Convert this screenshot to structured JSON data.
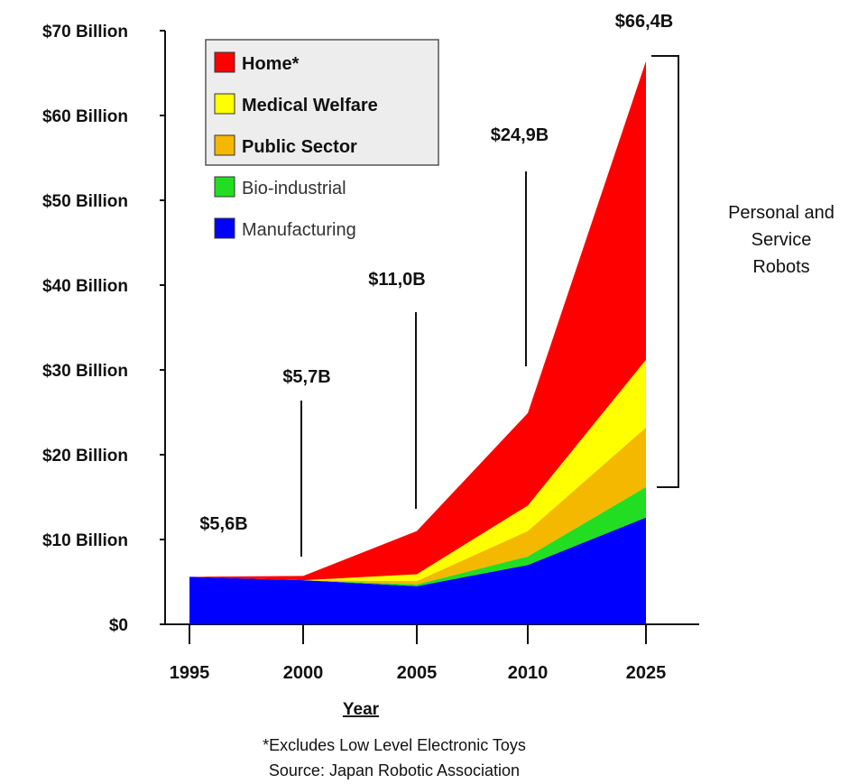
{
  "chart_data": {
    "type": "area",
    "stacked": true,
    "x": [
      "1995",
      "2000",
      "2005",
      "2010",
      "2025"
    ],
    "xlabel": "Year",
    "ylabel": "",
    "ylim": [
      0,
      70
    ],
    "y_ticks": [
      "$0",
      "$10 Billion",
      "$20 Billion",
      "$30 Billion",
      "$40 Billion",
      "$50 Billion",
      "$60 Billion",
      "$70 Billion"
    ],
    "series": [
      {
        "name": "Manufacturing",
        "color": "#0000ff",
        "values": [
          5.6,
          5.2,
          4.5,
          7.0,
          12.6
        ]
      },
      {
        "name": "Bio-industrial",
        "color": "#22dd22",
        "values": [
          0,
          0,
          0.2,
          1.0,
          3.6
        ]
      },
      {
        "name": "Public Sector",
        "color": "#f5b800",
        "values": [
          0,
          0,
          0.4,
          3.0,
          7.0
        ]
      },
      {
        "name": "Medical Welfare",
        "color": "#ffff00",
        "values": [
          0,
          0,
          0.8,
          3.0,
          8.0
        ]
      },
      {
        "name": "Home*",
        "color": "#ff0000",
        "values": [
          0,
          0.5,
          5.1,
          10.9,
          35.2
        ]
      }
    ],
    "legend": "top-left",
    "annotations": {
      "totals": [
        "$5,6B",
        "$5,7B",
        "$11,0B",
        "$24,9B",
        "$66,4B"
      ],
      "bracket_label": "Personal and Service Robots",
      "footnote": "*Excludes Low Level Electronic Toys",
      "source": "Source: Japan Robotic Association"
    }
  }
}
